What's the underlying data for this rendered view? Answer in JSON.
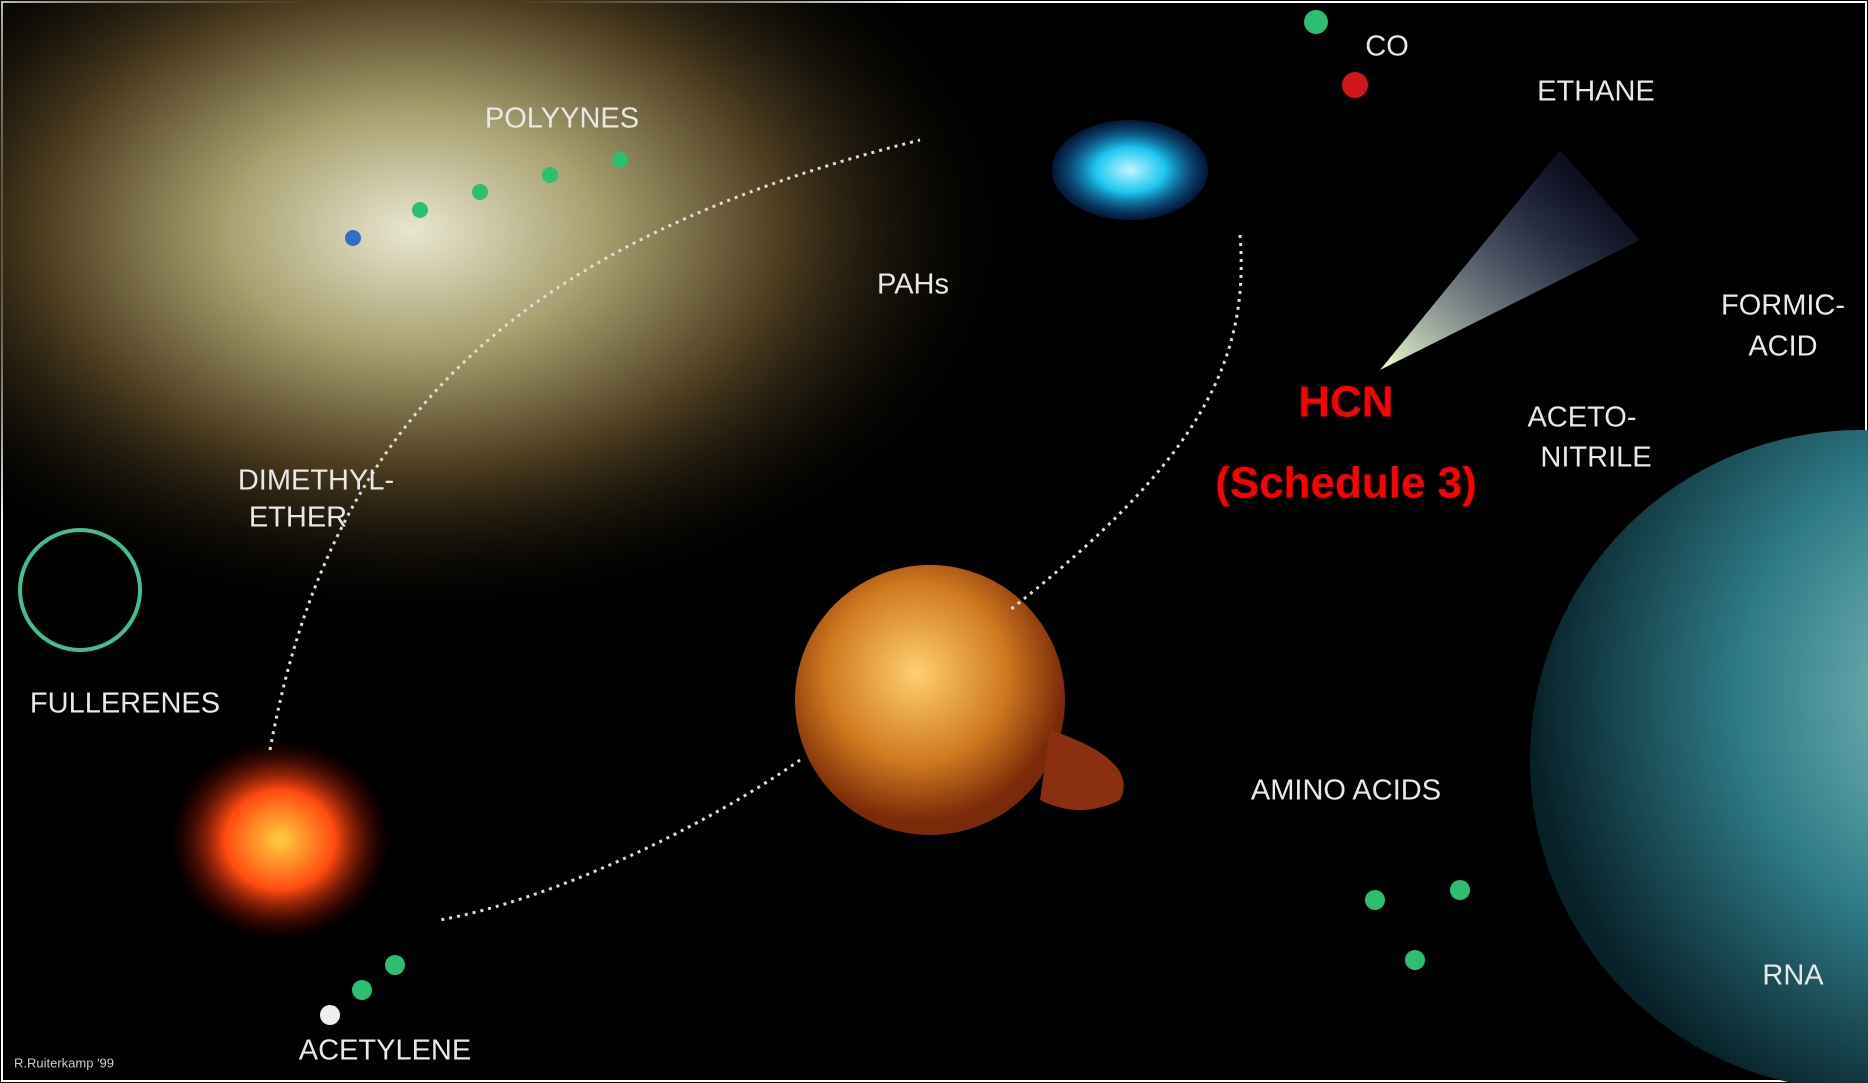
{
  "labels": [
    "CO",
    "ETHANE",
    "POLYYNES",
    "PAHs",
    "FORMIC-",
    "ACID",
    "ACETO-",
    "NITRILE",
    "DIMETHYL-",
    "ETHER",
    "FULLERENES",
    "AMINO ACIDS",
    "RNA",
    "ACETYLENE"
  ],
  "annotation": [
    "HCN",
    "(Schedule 3)"
  ],
  "credit": "R.Ruiterkamp '99"
}
